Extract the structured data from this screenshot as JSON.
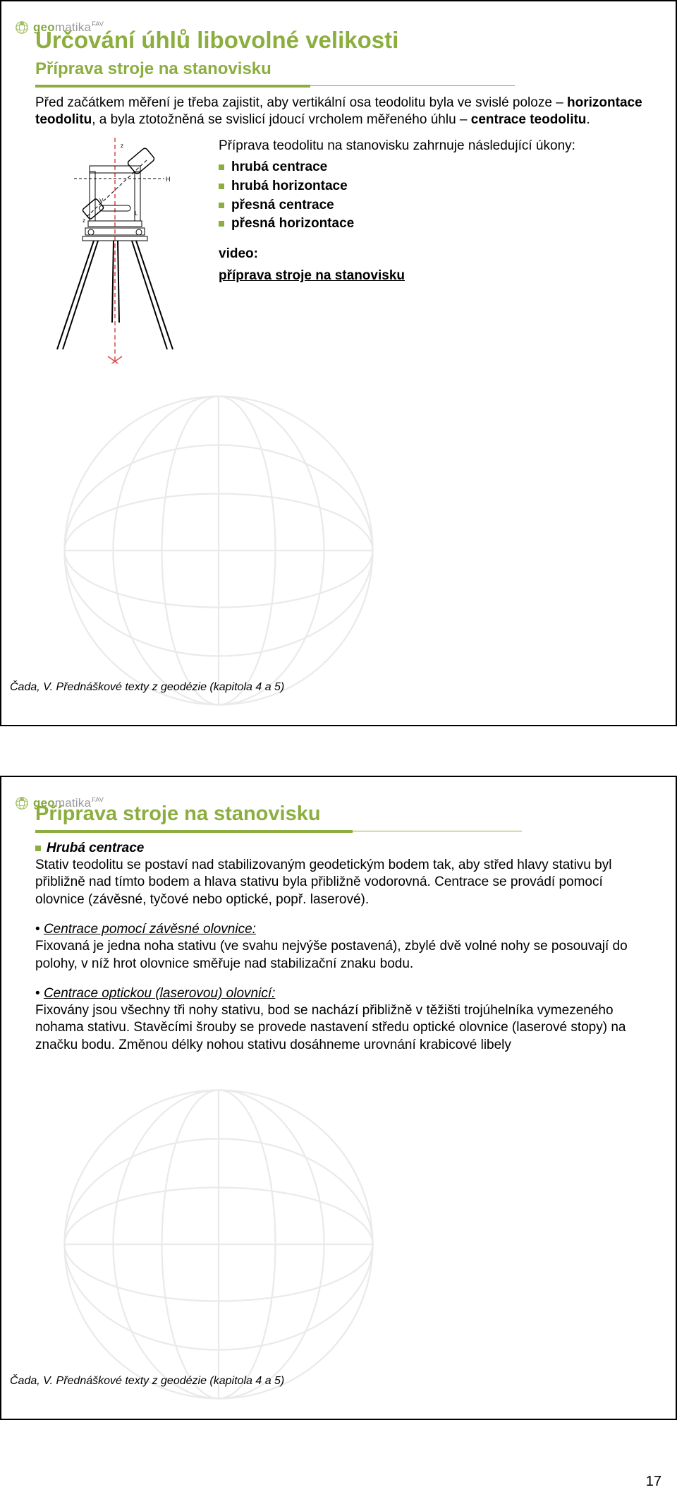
{
  "accent_color": "#8bae3e",
  "logo": {
    "brand_prefix": "geo",
    "brand_rest": "matika",
    "superscript": "FAV"
  },
  "page_number": "17",
  "slide1": {
    "main_title": "Určování úhlů libovolné velikosti",
    "sub_title": "Příprava stroje na stanovisku",
    "intro_html": "Před začátkem měření je třeba zajistit, aby vertikální osa teodolitu byla ve svislé poloze – <b>horizontace teodolitu</b>, a byla ztotožněná se svislicí jdoucí vrcholem měřeného úhlu – <b>centrace teodolitu</b>.",
    "prep_line": "Příprava teodolitu na stanovisku zahrnuje následující úkony:",
    "bullets": [
      "hrubá centrace",
      "hrubá horizontace",
      "přesná centrace",
      "přesná horizontace"
    ],
    "video_label": "video:",
    "video_link_text": "příprava stroje na stanovisku",
    "citation": "Čada, V. Přednáškové texty z geodézie (kapitola 4 a 5)"
  },
  "slide2": {
    "sub_title": "Příprava stroje na stanovisku",
    "hruba_head": "Hrubá centrace",
    "hruba_body": "Stativ teodolitu se postaví nad stabilizovaným geodetickým bodem tak, aby střed hlavy stativu byl přibližně nad tímto bodem a hlava stativu byla přibližně vodorovná. Centrace se provádí pomocí olovnice (závěsné, tyčové nebo optické, popř. laserové).",
    "p2_head": "Centrace pomocí závěsné olovnice:",
    "p2_body": "Fixovaná je jedna noha stativu (ve svahu nejvýše postavená), zbylé dvě volné nohy se posouvají do polohy, v níž hrot olovnice směřuje nad stabilizační znaku bodu.",
    "p3_head": "Centrace optickou (laserovou) olovnicí:",
    "p3_body": "Fixovány jsou všechny tři nohy stativu, bod se nachází přibližně v těžišti trojúhelníka vymezeného nohama stativu. Stavěcími šrouby se provede nastavení středu optické olovnice (laserové stopy) na značku bodu. Změnou délky nohou stativu dosáhneme urovnání krabicové libely",
    "citation": "Čada, V. Přednáškové texty z geodézie (kapitola 4 a 5)"
  }
}
